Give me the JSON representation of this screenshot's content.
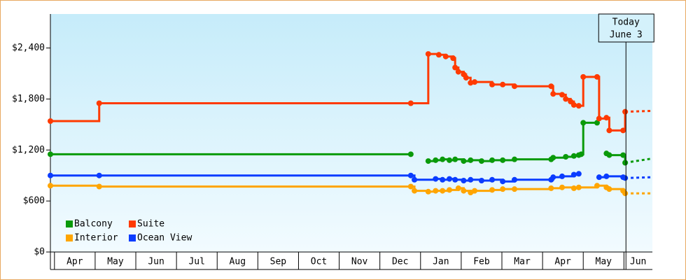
{
  "chart_data": {
    "type": "step-line",
    "xlim": [
      -0.1,
      14.7
    ],
    "xticks": [
      {
        "value": 0.5,
        "label": "Apr"
      },
      {
        "value": 1.5,
        "label": "May"
      },
      {
        "value": 2.5,
        "label": "Jun"
      },
      {
        "value": 3.5,
        "label": "Jul"
      },
      {
        "value": 4.5,
        "label": "Aug"
      },
      {
        "value": 5.5,
        "label": "Sep"
      },
      {
        "value": 6.5,
        "label": "Oct"
      },
      {
        "value": 7.5,
        "label": "Nov"
      },
      {
        "value": 8.5,
        "label": "Dec"
      },
      {
        "value": 9.5,
        "label": "Jan"
      },
      {
        "value": 10.5,
        "label": "Feb"
      },
      {
        "value": 11.5,
        "label": "Mar"
      },
      {
        "value": 12.5,
        "label": "Apr"
      },
      {
        "value": 13.5,
        "label": "May"
      },
      {
        "value": 14.5,
        "label": "Jun"
      }
    ],
    "ylim": [
      0,
      2800
    ],
    "yticks": [
      {
        "value": 0,
        "label": "$0"
      },
      {
        "value": 600,
        "label": "$600"
      },
      {
        "value": 1200,
        "label": "$1,200"
      },
      {
        "value": 1800,
        "label": "$1,800"
      },
      {
        "value": 2400,
        "label": "$2,400"
      }
    ],
    "annotation": {
      "text": "Today",
      "subtext": "June 3",
      "x": 14.05
    },
    "series": [
      {
        "name": "Balcony",
        "color": "#0a9a0a",
        "x": [
          -0.1,
          8.76,
          9.0,
          9.19,
          9.37,
          9.54,
          9.71,
          9.85,
          10.06,
          10.23,
          10.5,
          10.76,
          11.02,
          11.31,
          12.21,
          12.26,
          12.57,
          12.77,
          12.89,
          12.95,
          13.0,
          13.34,
          13.45,
          13.57,
          13.64,
          13.98,
          14.03
        ],
        "values": [
          1150,
          1150,
          null,
          1070,
          1080,
          1090,
          1080,
          1090,
          1070,
          1080,
          1070,
          1080,
          1080,
          1090,
          1090,
          1110,
          1120,
          1130,
          1140,
          1150,
          1520,
          1520,
          null,
          1160,
          1140,
          1140,
          1050
        ],
        "forecast": 1100
      },
      {
        "name": "Suite",
        "color": "#ff3a00",
        "x": [
          -0.1,
          1.1,
          8.76,
          9.19,
          9.45,
          9.62,
          9.8,
          9.85,
          9.93,
          10.06,
          10.12,
          10.23,
          10.33,
          10.76,
          11.02,
          11.31,
          12.21,
          12.26,
          12.48,
          12.57,
          12.69,
          12.77,
          12.89,
          13.0,
          13.34,
          13.39,
          13.57,
          13.64,
          13.98,
          14.03
        ],
        "values": [
          1540,
          1750,
          1750,
          2330,
          2320,
          2300,
          2280,
          2170,
          2120,
          2090,
          2050,
          1990,
          2000,
          1970,
          1970,
          1950,
          1950,
          1860,
          1850,
          1800,
          1770,
          1730,
          1720,
          2060,
          2060,
          1570,
          1580,
          1430,
          1430,
          1650
        ],
        "forecast": 1660
      },
      {
        "name": "Interior",
        "color": "#ffa500",
        "x": [
          -0.1,
          1.1,
          8.76,
          8.85,
          9.19,
          9.37,
          9.54,
          9.71,
          9.93,
          10.06,
          10.23,
          10.33,
          10.76,
          11.02,
          11.31,
          12.21,
          12.48,
          12.77,
          12.89,
          13.34,
          13.57,
          13.64,
          13.98,
          14.03
        ],
        "values": [
          780,
          770,
          770,
          720,
          710,
          720,
          720,
          730,
          750,
          720,
          700,
          720,
          730,
          740,
          740,
          750,
          760,
          750,
          760,
          780,
          760,
          740,
          720,
          690
        ],
        "forecast": 690
      },
      {
        "name": "Ocean View",
        "color": "#0a3cff",
        "x": [
          -0.1,
          1.1,
          8.76,
          8.85,
          9.37,
          9.54,
          9.71,
          9.85,
          10.06,
          10.23,
          10.5,
          10.76,
          11.02,
          11.31,
          12.21,
          12.26,
          12.48,
          12.77,
          12.89,
          13.1,
          13.39,
          13.57,
          13.98,
          14.03
        ],
        "values": [
          900,
          900,
          900,
          850,
          860,
          850,
          860,
          850,
          840,
          850,
          840,
          850,
          830,
          850,
          850,
          880,
          890,
          910,
          920,
          null,
          880,
          890,
          880,
          870
        ],
        "forecast": 880
      }
    ]
  }
}
